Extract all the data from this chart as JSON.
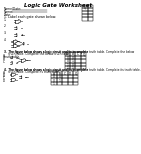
{
  "title": "Logic Gate Worksheet",
  "name_label": "Name/Date:",
  "section1_label": "1. Label each gate shown below:",
  "q3_label": "3.  The figure below shows a logic circuit and its incomplete truth table. Complete the below truth table.",
  "q3_table_headers": [
    "A",
    "B",
    "C",
    "Q"
  ],
  "q3_table_rows": [
    [
      "0",
      "0",
      "",
      ""
    ],
    [
      "0",
      "1",
      "",
      ""
    ],
    [
      "1",
      "0",
      "",
      ""
    ],
    [
      "1",
      "1",
      "",
      ""
    ]
  ],
  "q4_label": "4.  The figure below shows a logic circuit and its incomplete truth table. Complete its truth table.",
  "q4_table_headers": [
    "A",
    "B",
    "C",
    "D",
    "Q"
  ],
  "q4_table_rows": [
    [
      "0",
      "0",
      "",
      "",
      ""
    ],
    [
      "0",
      "1",
      "",
      "",
      ""
    ],
    [
      "1",
      "",
      "",
      "",
      ""
    ]
  ],
  "bg_color": "#ffffff",
  "text_color": "#000000",
  "line_color": "#000000",
  "gate_scale": 0.55,
  "title_fs": 4.0,
  "label_fs": 2.5,
  "tiny_fs": 2.2
}
